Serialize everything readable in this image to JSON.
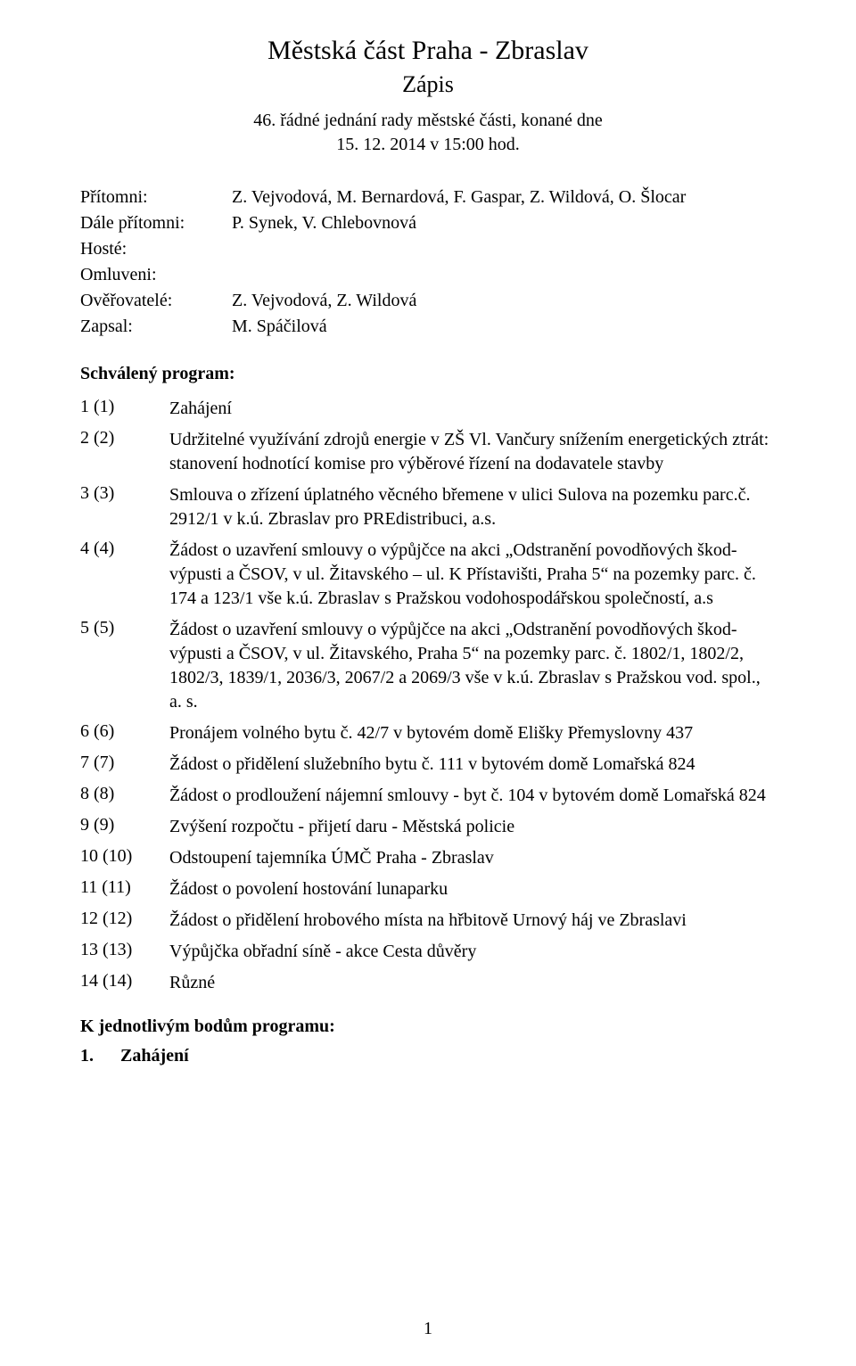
{
  "header": {
    "title": "Městská část Praha - Zbraslav",
    "subtitle": "Zápis",
    "meeting_line": "46. řádné jednání rady městské části, konané dne",
    "datetime": "15. 12. 2014 v 15:00 hod."
  },
  "attendance": {
    "rows": [
      {
        "label": "Přítomni:",
        "value": "Z. Vejvodová, M. Bernardová, F. Gaspar, Z. Wildová, O. Šlocar"
      },
      {
        "label": "Dále přítomni:",
        "value": "P. Synek, V. Chlebovnová"
      },
      {
        "label": "Hosté:",
        "value": ""
      },
      {
        "label": "Omluveni:",
        "value": ""
      },
      {
        "label": "Ověřovatelé:",
        "value": "Z. Vejvodová, Z. Wildová"
      },
      {
        "label": "Zapsal:",
        "value": "M. Spáčilová"
      }
    ]
  },
  "program": {
    "heading": "Schválený program:",
    "items": [
      {
        "num": "1 (1)",
        "text": "Zahájení"
      },
      {
        "num": "2 (2)",
        "text": "Udržitelné využívání zdrojů energie v ZŠ Vl. Vančury snížením energetických ztrát: stanovení hodnotící komise pro výběrové řízení na dodavatele stavby"
      },
      {
        "num": "3 (3)",
        "text": "Smlouva o zřízení úplatného věcného břemene v ulici Sulova na pozemku parc.č. 2912/1 v k.ú. Zbraslav pro PREdistribuci, a.s."
      },
      {
        "num": "4 (4)",
        "text": "Žádost o uzavření smlouvy o výpůjčce na akci „Odstranění povodňových škod-výpusti a ČSOV, v ul. Žitavského – ul. K Přístavišti, Praha 5“ na pozemky parc. č. 174 a 123/1 vše k.ú. Zbraslav s Pražskou vodohospodářskou společností, a.s"
      },
      {
        "num": "5 (5)",
        "text": "Žádost o uzavření smlouvy o výpůjčce na akci „Odstranění povodňových škod-výpusti a ČSOV, v ul. Žitavského, Praha 5“ na pozemky parc. č. 1802/1, 1802/2, 1802/3, 1839/1, 2036/3, 2067/2 a 2069/3 vše v k.ú. Zbraslav s Pražskou vod. spol., a. s."
      },
      {
        "num": "6 (6)",
        "text": "Pronájem volného bytu č. 42/7 v bytovém domě Elišky Přemyslovny 437"
      },
      {
        "num": "7 (7)",
        "text": "Žádost o přidělení služebního bytu č. 111 v bytovém domě Lomařská 824"
      },
      {
        "num": "8 (8)",
        "text": "Žádost o prodloužení nájemní smlouvy - byt č. 104 v bytovém domě Lomařská 824"
      },
      {
        "num": "9 (9)",
        "text": "Zvýšení rozpočtu - přijetí daru - Městská policie"
      },
      {
        "num": "10 (10)",
        "text": "Odstoupení tajemníka ÚMČ Praha - Zbraslav"
      },
      {
        "num": "11 (11)",
        "text": "Žádost o povolení hostování lunaparku"
      },
      {
        "num": "12 (12)",
        "text": "Žádost o přidělení hrobového místa na hřbitově Urnový háj ve Zbraslavi"
      },
      {
        "num": "13 (13)",
        "text": "Výpůjčka obřadní síně - akce Cesta důvěry"
      },
      {
        "num": "14 (14)",
        "text": "Různé"
      }
    ]
  },
  "closing": {
    "heading": "K jednotlivým bodům programu:",
    "item_num": "1.",
    "item_text": "Zahájení"
  },
  "page_number": "1"
}
